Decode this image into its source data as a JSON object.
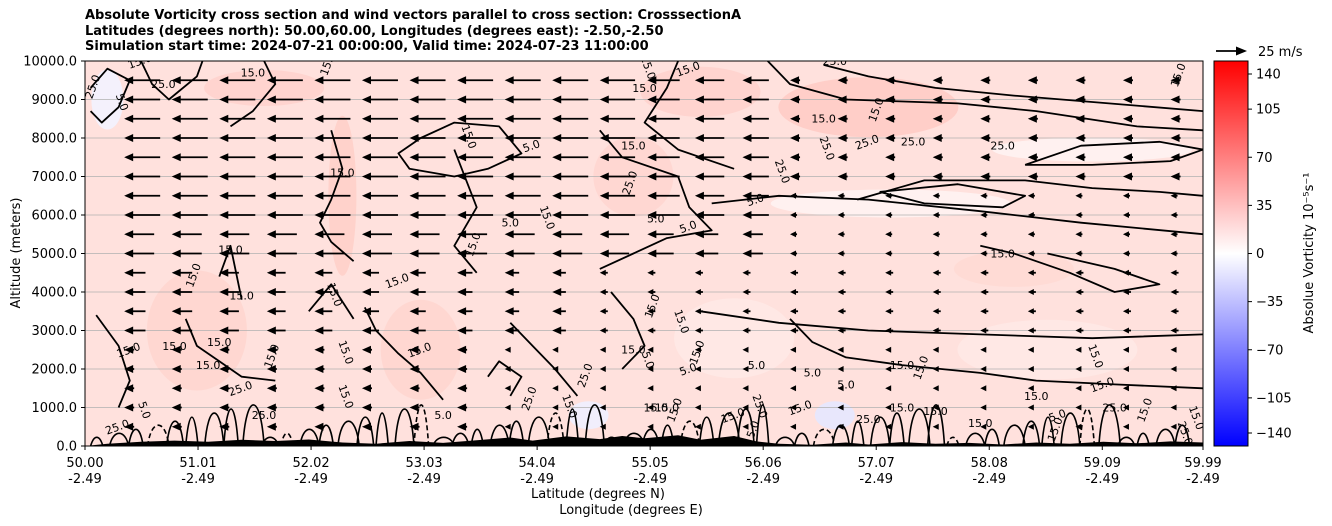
{
  "title": {
    "line1": "Absolute Vorticity cross section and wind vectors parallel to cross section: CrosssectionA",
    "line2": "Latitudes (degrees north): 50.00,60.00, Longitudes (degrees east): -2.50,-2.50",
    "line3": "Simulation start time: 2024-07-21 00:00:00, Valid time: 2024-07-23 11:00:00"
  },
  "quiver_key": {
    "label": "25 m/s"
  },
  "colorbar": {
    "label": "Absolue Vorticity 10⁻⁵s⁻¹",
    "ticks": [
      "140",
      "105",
      "70",
      "35",
      "0",
      "−35",
      "−70",
      "−105",
      "−140"
    ],
    "colors": {
      "min": "#0000ff",
      "mid": "#ffffff",
      "max": "#ff0000"
    }
  },
  "chart_data": {
    "type": "heatmap",
    "title": "Absolute Vorticity cross section and wind vectors parallel to cross section: CrosssectionA",
    "xlabel": "Latitude (degrees N)",
    "xlabel2": "Longitude (degrees E)",
    "ylabel": "Altitude (meters)",
    "xlim": [
      50.0,
      59.99
    ],
    "ylim": [
      0,
      10000
    ],
    "x_ticks": [
      {
        "lat": "50.00",
        "lon": "-2.49"
      },
      {
        "lat": "51.01",
        "lon": "-2.49"
      },
      {
        "lat": "52.02",
        "lon": "-2.49"
      },
      {
        "lat": "53.03",
        "lon": "-2.49"
      },
      {
        "lat": "54.04",
        "lon": "-2.49"
      },
      {
        "lat": "55.05",
        "lon": "-2.49"
      },
      {
        "lat": "56.06",
        "lon": "-2.49"
      },
      {
        "lat": "57.07",
        "lon": "-2.49"
      },
      {
        "lat": "58.08",
        "lon": "-2.49"
      },
      {
        "lat": "59.09",
        "lon": "-2.49"
      },
      {
        "lat": "59.99",
        "lon": "-2.49"
      }
    ],
    "y_ticks": [
      "0.0",
      "1000.0",
      "2000.0",
      "3000.0",
      "4000.0",
      "5000.0",
      "6000.0",
      "7000.0",
      "8000.0",
      "9000.0",
      "10000.0"
    ],
    "colorbar_range": [
      -140,
      140
    ],
    "grid": true,
    "contour_levels": [
      "5.0",
      "15.0",
      "25.0"
    ],
    "contour_labels": [
      {
        "text": "25.0",
        "lat": 50.1,
        "alt": 9300
      },
      {
        "text": "5.0",
        "lat": 50.3,
        "alt": 8900
      },
      {
        "text": "15.0",
        "lat": 50.5,
        "alt": 9900
      },
      {
        "text": "25.0",
        "lat": 50.7,
        "alt": 9300
      },
      {
        "text": "15.0",
        "lat": 51.5,
        "alt": 9600
      },
      {
        "text": "15.0",
        "lat": 52.2,
        "alt": 9900
      },
      {
        "text": "15.0",
        "lat": 53.4,
        "alt": 8000
      },
      {
        "text": "5.0",
        "lat": 54.0,
        "alt": 7700
      },
      {
        "text": "15.0",
        "lat": 55.0,
        "alt": 9200
      },
      {
        "text": "15.0",
        "lat": 54.9,
        "alt": 7700
      },
      {
        "text": "25.0",
        "lat": 54.9,
        "alt": 6800
      },
      {
        "text": "25.0",
        "lat": 55.0,
        "alt": 9800
      },
      {
        "text": "15.0",
        "lat": 55.4,
        "alt": 9700
      },
      {
        "text": "25.0",
        "lat": 56.7,
        "alt": 9900
      },
      {
        "text": "15.0",
        "lat": 56.6,
        "alt": 8400
      },
      {
        "text": "15.0",
        "lat": 57.1,
        "alt": 8700
      },
      {
        "text": "25.0",
        "lat": 56.6,
        "alt": 7700
      },
      {
        "text": "25.0",
        "lat": 57.0,
        "alt": 7800
      },
      {
        "text": "25.0",
        "lat": 57.4,
        "alt": 7800
      },
      {
        "text": "25.0",
        "lat": 58.2,
        "alt": 7700
      },
      {
        "text": "15.0",
        "lat": 59.8,
        "alt": 9600
      },
      {
        "text": "25.0",
        "lat": 56.2,
        "alt": 7100
      },
      {
        "text": "5.0",
        "lat": 56.0,
        "alt": 6300
      },
      {
        "text": "15.0",
        "lat": 52.3,
        "alt": 7000
      },
      {
        "text": "5.0",
        "lat": 53.8,
        "alt": 5700
      },
      {
        "text": "15.0",
        "lat": 53.5,
        "alt": 5200
      },
      {
        "text": "15.0",
        "lat": 54.1,
        "alt": 5900
      },
      {
        "text": "5.0",
        "lat": 55.4,
        "alt": 5600
      },
      {
        "text": "5.0",
        "lat": 55.1,
        "alt": 5800
      },
      {
        "text": "15.0",
        "lat": 51.3,
        "alt": 5000
      },
      {
        "text": "15.0",
        "lat": 51.0,
        "alt": 4400
      },
      {
        "text": "15.0",
        "lat": 52.2,
        "alt": 3900
      },
      {
        "text": "15.0",
        "lat": 52.8,
        "alt": 4200
      },
      {
        "text": "15.0",
        "lat": 58.2,
        "alt": 4900
      },
      {
        "text": "15.0",
        "lat": 51.4,
        "alt": 3800
      },
      {
        "text": "15.0",
        "lat": 55.1,
        "alt": 3600
      },
      {
        "text": "15.0",
        "lat": 55.3,
        "alt": 3200
      },
      {
        "text": "15.0",
        "lat": 50.4,
        "alt": 2400
      },
      {
        "text": "15.0",
        "lat": 50.8,
        "alt": 2500
      },
      {
        "text": "15.0",
        "lat": 51.2,
        "alt": 2600
      },
      {
        "text": "15.0",
        "lat": 51.7,
        "alt": 2300
      },
      {
        "text": "15.0",
        "lat": 52.3,
        "alt": 2400
      },
      {
        "text": "15.0",
        "lat": 53.0,
        "alt": 2400
      },
      {
        "text": "15.0",
        "lat": 51.1,
        "alt": 2000
      },
      {
        "text": "15.0",
        "lat": 54.9,
        "alt": 2400
      },
      {
        "text": "15.0",
        "lat": 55.5,
        "alt": 2400
      },
      {
        "text": "5.0",
        "lat": 55.0,
        "alt": 2200
      },
      {
        "text": "5.0",
        "lat": 55.4,
        "alt": 1900
      },
      {
        "text": "5.0",
        "lat": 56.0,
        "alt": 2000
      },
      {
        "text": "15.0",
        "lat": 57.3,
        "alt": 2000
      },
      {
        "text": "15.0",
        "lat": 57.5,
        "alt": 2000
      },
      {
        "text": "15.0",
        "lat": 59.0,
        "alt": 2300
      },
      {
        "text": "25.0",
        "lat": 51.4,
        "alt": 1400
      },
      {
        "text": "5.0",
        "lat": 56.5,
        "alt": 1800
      },
      {
        "text": "5.0",
        "lat": 56.8,
        "alt": 1500
      },
      {
        "text": "25.0",
        "lat": 54.5,
        "alt": 1800
      },
      {
        "text": "15.0",
        "lat": 52.3,
        "alt": 1250
      },
      {
        "text": "15.0",
        "lat": 59.1,
        "alt": 1500
      },
      {
        "text": "15.0",
        "lat": 58.5,
        "alt": 1200
      },
      {
        "text": "25.0",
        "lat": 59.2,
        "alt": 900
      },
      {
        "text": "15.0",
        "lat": 59.5,
        "alt": 900
      },
      {
        "text": "15.0",
        "lat": 59.9,
        "alt": 700
      },
      {
        "text": "5.0",
        "lat": 58.7,
        "alt": 700
      },
      {
        "text": "15.0",
        "lat": 55.2,
        "alt": 900
      },
      {
        "text": "15.0",
        "lat": 55.1,
        "alt": 900
      },
      {
        "text": "15.0",
        "lat": 55.3,
        "alt": 900
      },
      {
        "text": "25.0",
        "lat": 56.0,
        "alt": 1000
      },
      {
        "text": "15.0",
        "lat": 56.4,
        "alt": 900
      },
      {
        "text": "15.0",
        "lat": 57.3,
        "alt": 900
      },
      {
        "text": "15.0",
        "lat": 57.6,
        "alt": 800
      },
      {
        "text": "5.0",
        "lat": 56.0,
        "alt": 400
      },
      {
        "text": "5.0",
        "lat": 50.5,
        "alt": 900
      },
      {
        "text": "25.0",
        "lat": 50.3,
        "alt": 400
      },
      {
        "text": "25.0",
        "lat": 51.6,
        "alt": 700
      },
      {
        "text": "5.0",
        "lat": 53.2,
        "alt": 700
      },
      {
        "text": "25.0",
        "lat": 54.0,
        "alt": 1200
      },
      {
        "text": "15.0",
        "lat": 54.3,
        "alt": 1000
      },
      {
        "text": "15.0",
        "lat": 55.8,
        "alt": 700
      },
      {
        "text": "25.0",
        "lat": 57.0,
        "alt": 600
      },
      {
        "text": "15.0",
        "lat": 58.0,
        "alt": 500
      },
      {
        "text": "15.0",
        "lat": 58.7,
        "alt": 400
      },
      {
        "text": "25.0",
        "lat": 59.8,
        "alt": 300
      }
    ]
  }
}
